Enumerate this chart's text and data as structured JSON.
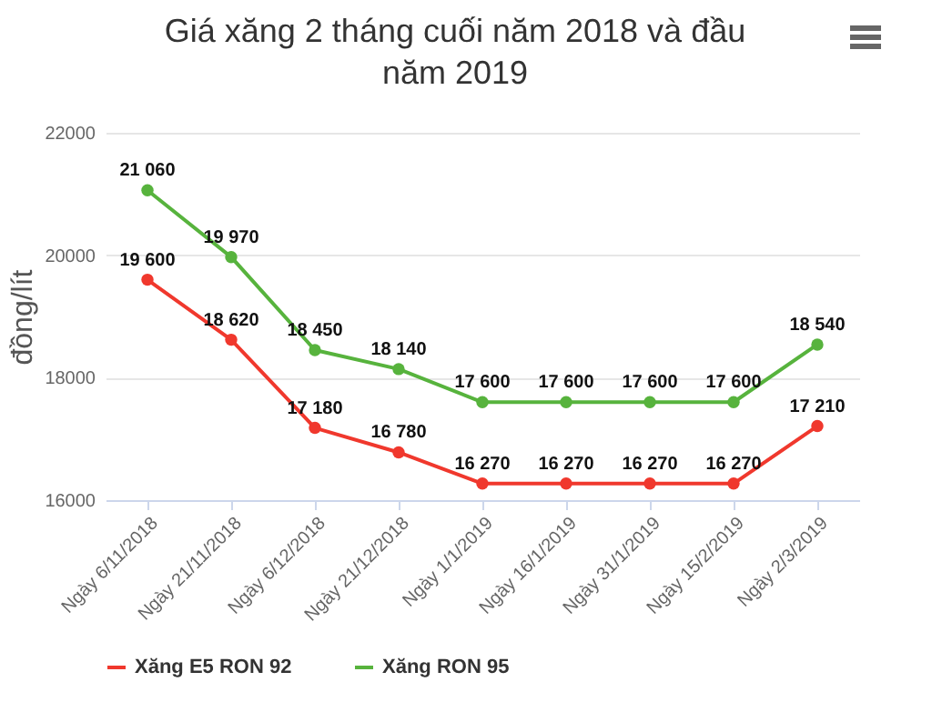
{
  "chart_data": {
    "type": "line",
    "title": "Giá xăng 2 tháng cuối năm 2018 và đầu năm 2019",
    "ylabel": "đồng/lít",
    "categories": [
      "Ngày 6/11/2018",
      "Ngày 21/11/2018",
      "Ngày 6/12/2018",
      "Ngày 21/12/2018",
      "Ngày 1/1/2019",
      "Ngày 16/1/2019",
      "Ngày 31/1/2019",
      "Ngày 15/2/2019",
      "Ngày 2/3/2019"
    ],
    "series": [
      {
        "name": "Xăng E5 RON 92",
        "color": "#f0382d",
        "values": [
          19600,
          18620,
          17180,
          16780,
          16270,
          16270,
          16270,
          16270,
          17210
        ],
        "value_labels": [
          "19 600",
          "18 620",
          "17 180",
          "16 780",
          "16 270",
          "16 270",
          "16 270",
          "16 270",
          "17 210"
        ]
      },
      {
        "name": "Xăng RON 95",
        "color": "#57b33d",
        "values": [
          21060,
          19970,
          18450,
          18140,
          17600,
          17600,
          17600,
          17600,
          18540
        ],
        "value_labels": [
          "21 060",
          "19 970",
          "18 450",
          "18 140",
          "17 600",
          "17 600",
          "17 600",
          "17 600",
          "18 540"
        ]
      }
    ],
    "ylim": [
      16000,
      22000
    ],
    "yticks": [
      16000,
      18000,
      20000,
      22000
    ],
    "grid": "y",
    "legend": "bottom",
    "marker": "circle",
    "line_style": "solid"
  }
}
